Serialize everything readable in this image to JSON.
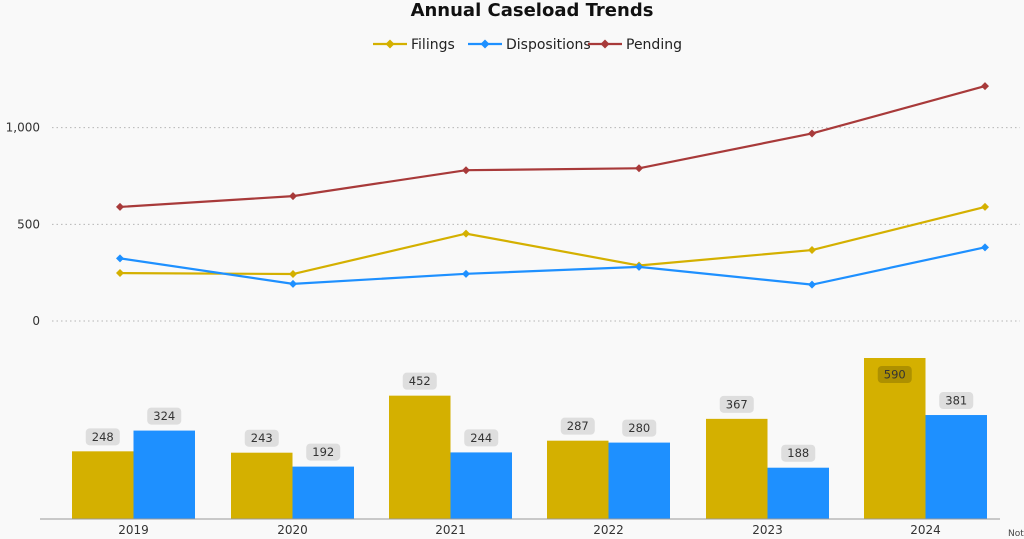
{
  "chart_data": {
    "type": "line",
    "title": "Annual Caseload Trends",
    "categories": [
      "2019",
      "2020",
      "2021",
      "2022",
      "2023",
      "2024"
    ],
    "series": [
      {
        "name": "Filings",
        "color": "#d4b000",
        "values": [
          248,
          243,
          452,
          287,
          367,
          590
        ]
      },
      {
        "name": "Dispositions",
        "color": "#1e90ff",
        "values": [
          324,
          192,
          244,
          280,
          188,
          381
        ]
      },
      {
        "name": "Pending",
        "color": "#a83a3a",
        "values": [
          590,
          646,
          780,
          790,
          970,
          1215
        ]
      }
    ],
    "y_ticks": [
      0,
      500,
      1000
    ],
    "y_tick_labels": [
      "0",
      "500",
      "1,000"
    ],
    "ylim": [
      0,
      1350
    ],
    "grid": true,
    "legend_position": "top-center",
    "bar_panel": {
      "type": "bar",
      "series_names": [
        "Filings",
        "Dispositions"
      ],
      "data_labels": true
    }
  }
}
